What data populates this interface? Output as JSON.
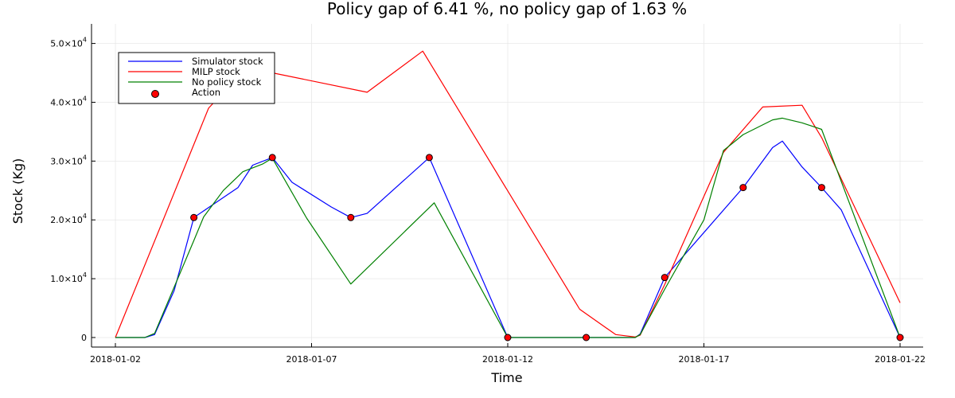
{
  "chart_data": {
    "type": "line",
    "title": "Policy gap of 6.41 %, no policy gap of 1.63 %",
    "xlabel": "Time",
    "ylabel": "Stock (Kg)",
    "xlim": [
      "2018-01-02",
      "2018-01-22"
    ],
    "ylim": [
      0,
      50000
    ],
    "x_ticks": [
      "2018-01-02",
      "2018-01-07",
      "2018-01-12",
      "2018-01-17",
      "2018-01-22"
    ],
    "y_ticks": [
      {
        "value": 0,
        "mantissa": "0",
        "exponent": ""
      },
      {
        "value": 10000,
        "mantissa": "1.0×10",
        "exponent": "4"
      },
      {
        "value": 20000,
        "mantissa": "2.0×10",
        "exponent": "4"
      },
      {
        "value": 30000,
        "mantissa": "3.0×10",
        "exponent": "4"
      },
      {
        "value": 40000,
        "mantissa": "4.0×10",
        "exponent": "4"
      },
      {
        "value": 50000,
        "mantissa": "5.0×10",
        "exponent": "4"
      }
    ],
    "grid": true,
    "legend_position": "top-left",
    "series": [
      {
        "name": "Simulator stock",
        "kind": "line",
        "color": "#0000ff",
        "points": [
          [
            "2018-01-02",
            0
          ],
          [
            "2018-01-02T18:00",
            0
          ],
          [
            "2018-01-03",
            500
          ],
          [
            "2018-01-03T12:00",
            8000
          ],
          [
            "2018-01-04",
            20400
          ],
          [
            "2018-01-05T03:00",
            25500
          ],
          [
            "2018-01-05T12:00",
            29300
          ],
          [
            "2018-01-06",
            30600
          ],
          [
            "2018-01-06T12:00",
            26400
          ],
          [
            "2018-01-07T12:00",
            22200
          ],
          [
            "2018-01-08",
            20400
          ],
          [
            "2018-01-08T10:00",
            21100
          ],
          [
            "2018-01-10",
            30600
          ],
          [
            "2018-01-12",
            0
          ],
          [
            "2018-01-14",
            0
          ],
          [
            "2018-01-15T06:00",
            0
          ],
          [
            "2018-01-15T09:00",
            600
          ],
          [
            "2018-01-16",
            10200
          ],
          [
            "2018-01-18",
            25500
          ],
          [
            "2018-01-18T18:00",
            32300
          ],
          [
            "2018-01-19",
            33400
          ],
          [
            "2018-01-19T12:00",
            29000
          ],
          [
            "2018-01-20",
            25500
          ],
          [
            "2018-01-20T12:00",
            21700
          ],
          [
            "2018-01-22",
            0
          ]
        ]
      },
      {
        "name": "MILP stock",
        "kind": "line",
        "color": "#ff0000",
        "points": [
          [
            "2018-01-02",
            0
          ],
          [
            "2018-01-04T09:00",
            39000
          ],
          [
            "2018-01-04T14:00",
            40500
          ],
          [
            "2018-01-06",
            45000
          ],
          [
            "2018-01-08T10:00",
            41700
          ],
          [
            "2018-01-09T20:00",
            48700
          ],
          [
            "2018-01-13T20:00",
            4800
          ],
          [
            "2018-01-14T18:00",
            500
          ],
          [
            "2018-01-15T06:00",
            100
          ],
          [
            "2018-01-15T09:00",
            400
          ],
          [
            "2018-01-16",
            9000
          ],
          [
            "2018-01-17T12:00",
            31500
          ],
          [
            "2018-01-18T12:00",
            39200
          ],
          [
            "2018-01-19T12:00",
            39500
          ],
          [
            "2018-01-20",
            34000
          ],
          [
            "2018-01-22",
            5900
          ]
        ]
      },
      {
        "name": "No policy stock",
        "kind": "line",
        "color": "#008000",
        "points": [
          [
            "2018-01-02",
            0
          ],
          [
            "2018-01-02T18:00",
            0
          ],
          [
            "2018-01-03",
            700
          ],
          [
            "2018-01-04",
            16500
          ],
          [
            "2018-01-04T06:00",
            20500
          ],
          [
            "2018-01-04T18:00",
            25000
          ],
          [
            "2018-01-05T06:00",
            28200
          ],
          [
            "2018-01-05T18:00",
            29500
          ],
          [
            "2018-01-06",
            30500
          ],
          [
            "2018-01-06T21:00",
            20300
          ],
          [
            "2018-01-08",
            9100
          ],
          [
            "2018-01-10T03:00",
            22900
          ],
          [
            "2018-01-12",
            0
          ],
          [
            "2018-01-15T06:00",
            0
          ],
          [
            "2018-01-15T09:00",
            500
          ],
          [
            "2018-01-16",
            8200
          ],
          [
            "2018-01-17",
            20000
          ],
          [
            "2018-01-17T12:00",
            31800
          ],
          [
            "2018-01-18",
            34500
          ],
          [
            "2018-01-18T18:00",
            37000
          ],
          [
            "2018-01-19",
            37300
          ],
          [
            "2018-01-19T12:00",
            36500
          ],
          [
            "2018-01-20",
            35400
          ],
          [
            "2018-01-22",
            0
          ]
        ]
      },
      {
        "name": "Action",
        "kind": "scatter",
        "color": "#ff0000",
        "points": [
          [
            "2018-01-04",
            20400
          ],
          [
            "2018-01-06",
            30600
          ],
          [
            "2018-01-08",
            20400
          ],
          [
            "2018-01-10",
            30600
          ],
          [
            "2018-01-12",
            0
          ],
          [
            "2018-01-14",
            0
          ],
          [
            "2018-01-16",
            10200
          ],
          [
            "2018-01-18",
            25500
          ],
          [
            "2018-01-20",
            25500
          ],
          [
            "2018-01-22",
            0
          ]
        ]
      }
    ]
  }
}
